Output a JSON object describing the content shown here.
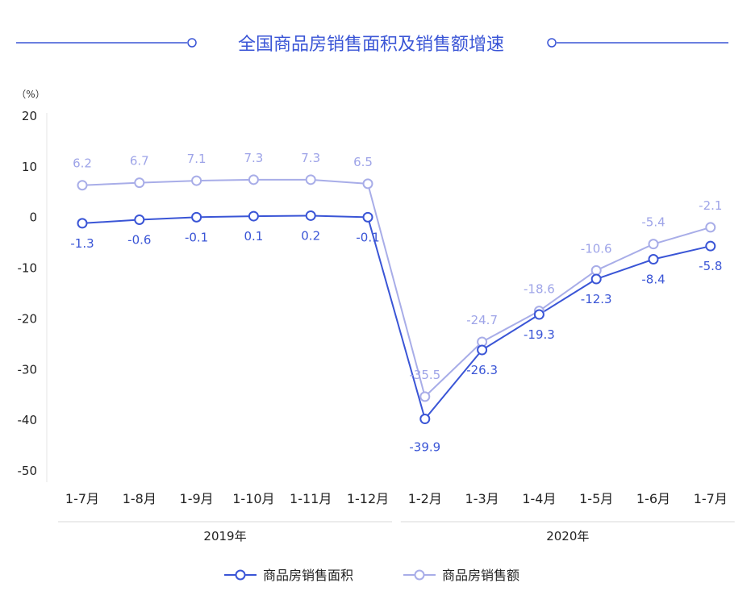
{
  "chart_data": {
    "type": "line",
    "title": "全国商品房销售面积及销售额增速",
    "unit_label": "（%）",
    "categories": [
      "1-7月",
      "1-8月",
      "1-9月",
      "1-10月",
      "1-11月",
      "1-12月",
      "1-2月",
      "1-3月",
      "1-4月",
      "1-5月",
      "1-6月",
      "1-7月"
    ],
    "groups": [
      {
        "label": "2019年",
        "from": 0,
        "to": 5
      },
      {
        "label": "2020年",
        "from": 6,
        "to": 11
      }
    ],
    "yticks": [
      "20",
      "10",
      "0",
      "-10",
      "-20",
      "-30",
      "-40",
      "-50"
    ],
    "ylim": [
      -50,
      20
    ],
    "series": [
      {
        "name": "商品房销售面积",
        "color": "#3a55d6",
        "values": [
          -1.3,
          -0.6,
          -0.1,
          0.1,
          0.2,
          -0.1,
          -39.9,
          -26.3,
          -19.3,
          -12.3,
          -8.4,
          -5.8
        ],
        "labels": [
          "-1.3",
          "-0.6",
          "-0.1",
          "0.1",
          "0.2",
          "-0.1",
          "-39.9",
          "-26.3",
          "-19.3",
          "-12.3",
          "-8.4",
          "-5.8"
        ]
      },
      {
        "name": "商品房销售额",
        "color": "#a8ade8",
        "values": [
          6.2,
          6.7,
          7.1,
          7.3,
          7.3,
          6.5,
          -35.5,
          -24.7,
          -18.6,
          -10.6,
          -5.4,
          -2.1
        ],
        "labels": [
          "6.2",
          "6.7",
          "7.1",
          "7.3",
          "7.3",
          "6.5",
          "-35.5",
          "-24.7",
          "-18.6",
          "-10.6",
          "-5.4",
          "-2.1"
        ]
      }
    ],
    "legend_position": "bottom-center",
    "grid": false
  }
}
